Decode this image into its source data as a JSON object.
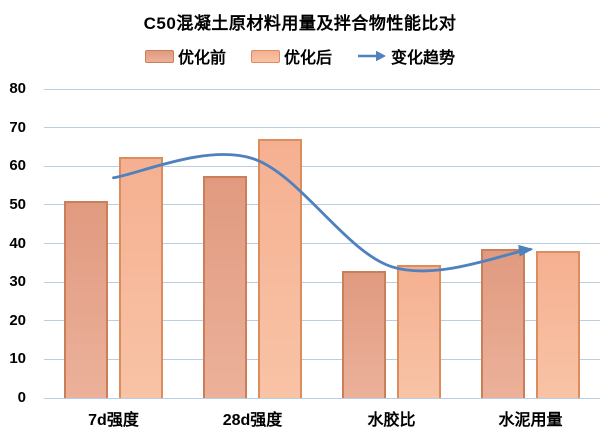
{
  "title": "C50混凝土原材料用量及拌合物性能比对",
  "legend": {
    "items": [
      {
        "label": "优化前",
        "swatch": "dark-salmon-bar"
      },
      {
        "label": "优化后",
        "swatch": "light-orange-bar"
      },
      {
        "label": "变化趋势",
        "swatch": "blue-arrow"
      }
    ]
  },
  "colors": {
    "pre_fill_top": "#E09A80",
    "pre_fill_bottom": "#ECB19A",
    "pre_border": "#CB7F58",
    "post_fill_top": "#F5B091",
    "post_fill_bottom": "#F9C3A6",
    "post_border": "#DB8D5D",
    "trend_line": "#4E81BD",
    "gridline": "#B9CDE5",
    "text": "#000000"
  },
  "chart_data": {
    "type": "bar",
    "title": "C50混凝土原材料用量及拌合物性能比对",
    "categories": [
      "7d强度",
      "28d强度",
      "水胶比",
      "水泥用量"
    ],
    "series": [
      {
        "name": "优化前",
        "type": "bar",
        "values": [
          51,
          57.5,
          33,
          38.5
        ]
      },
      {
        "name": "优化后",
        "type": "bar",
        "values": [
          62.5,
          67,
          34.5,
          38
        ]
      },
      {
        "name": "变化趋势",
        "type": "line",
        "smooth": true,
        "arrow_end": true,
        "values": [
          57,
          62,
          34,
          38.5
        ]
      }
    ],
    "xlabel": "",
    "ylabel": "",
    "ylim": [
      0,
      80
    ],
    "yticks": [
      0,
      10,
      20,
      30,
      40,
      50,
      60,
      70,
      80
    ],
    "grid": true,
    "legend_position": "top"
  }
}
